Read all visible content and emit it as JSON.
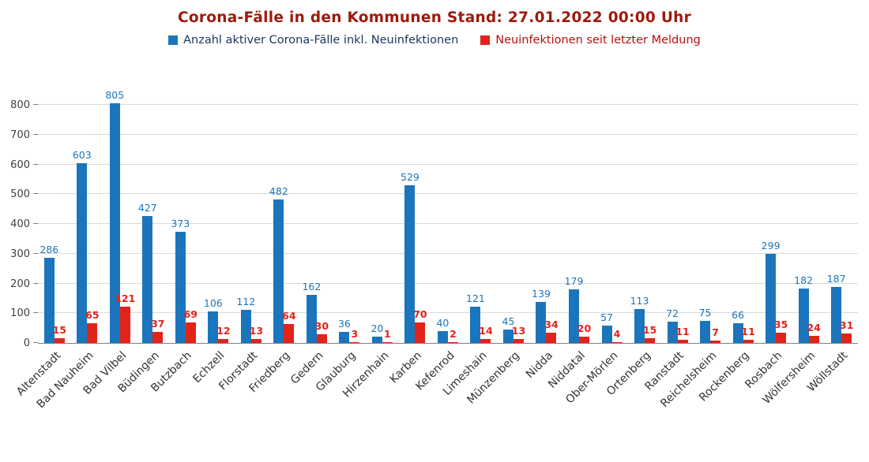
{
  "title": "Corona-Fälle in den Kommunen Stand: 27.01.2022 00:00 Uhr",
  "legend": [
    {
      "label": "Anzahl aktiver Corona-Fälle inkl. Neuinfektionen",
      "swatch_color": "#1b75bc",
      "text_color": "#17375e"
    },
    {
      "label": "Neuinfektionen seit letzter Meldung",
      "swatch_color": "#e2231a",
      "text_color": "#b80f0a"
    }
  ],
  "colors": {
    "active_bar": "#1b75bc",
    "new_bar": "#e2231a",
    "active_label": "#1b75bc",
    "new_label": "#e2231a",
    "grid": "#d9d9d9",
    "axis": "#808080",
    "title": "#9c1a0b"
  },
  "chart_data": {
    "type": "bar",
    "title": "Corona-Fälle in den Kommunen Stand: 27.01.2022 00:00 Uhr",
    "xlabel": "",
    "ylabel": "",
    "ylim": [
      0,
      800
    ],
    "ytick_step": 100,
    "yticks": [
      0,
      100,
      200,
      300,
      400,
      500,
      600,
      700,
      800
    ],
    "grid": true,
    "legend_position": "top",
    "categories": [
      "Altenstadt",
      "Bad Nauheim",
      "Bad Vilbel",
      "Büdingen",
      "Butzbach",
      "Echzell",
      "Florstadt",
      "Friedberg",
      "Gedern",
      "Glauburg",
      "Hirzenhain",
      "Karben",
      "Kefenrod",
      "Limeshain",
      "Münzenberg",
      "Nidda",
      "Niddatal",
      "Ober-Mörlen",
      "Ortenberg",
      "Ranstadt",
      "Reichelsheim",
      "Rockenberg",
      "Rosbach",
      "Wölfersheim",
      "Wöllstadt"
    ],
    "series": [
      {
        "name": "Anzahl aktiver Corona-Fälle inkl. Neuinfektionen",
        "color": "#1b75bc",
        "values": [
          286,
          603,
          805,
          427,
          373,
          106,
          112,
          482,
          162,
          36,
          20,
          529,
          40,
          121,
          45,
          139,
          179,
          57,
          113,
          72,
          75,
          66,
          299,
          182,
          187
        ]
      },
      {
        "name": "Neuinfektionen seit letzter Meldung",
        "color": "#e2231a",
        "values": [
          15,
          65,
          121,
          37,
          69,
          12,
          13,
          64,
          30,
          3,
          1,
          70,
          2,
          14,
          13,
          34,
          20,
          4,
          15,
          11,
          7,
          11,
          35,
          24,
          31
        ]
      }
    ]
  }
}
